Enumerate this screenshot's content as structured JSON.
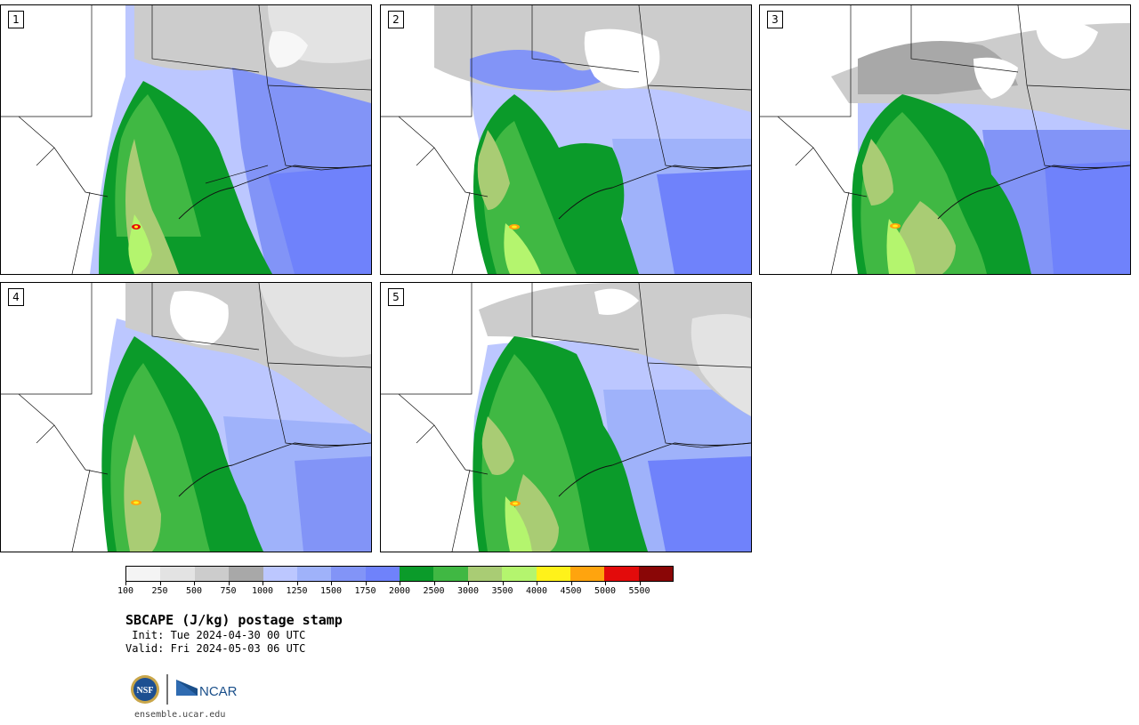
{
  "panels": [
    {
      "label": "1"
    },
    {
      "label": "2"
    },
    {
      "label": "3"
    },
    {
      "label": "4"
    },
    {
      "label": "5"
    }
  ],
  "colorbar": {
    "colors": [
      "#f4f4f4",
      "#e3e3e3",
      "#cccccc",
      "#a8a8a8",
      "#bcc7ff",
      "#9fb2fa",
      "#8294f7",
      "#6f82fb",
      "#0b9b2a",
      "#40b843",
      "#a9cc74",
      "#b4f56e",
      "#fff21a",
      "#ffa40e",
      "#e30b0b",
      "#8a0606"
    ],
    "tick_labels": [
      "100",
      "250",
      "500",
      "750",
      "1000",
      "1250",
      "1500",
      "1750",
      "2000",
      "2500",
      "3000",
      "3500",
      "4000",
      "4500",
      "5000",
      "5500"
    ]
  },
  "title": "SBCAPE (J/kg) postage stamp",
  "init": " Init: Tue 2024-04-30 00 UTC",
  "valid": "Valid: Fri 2024-05-03 06 UTC",
  "logos": {
    "nsf": "NSF",
    "ncar": "NCAR"
  },
  "site": "ensemble.ucar.edu"
}
